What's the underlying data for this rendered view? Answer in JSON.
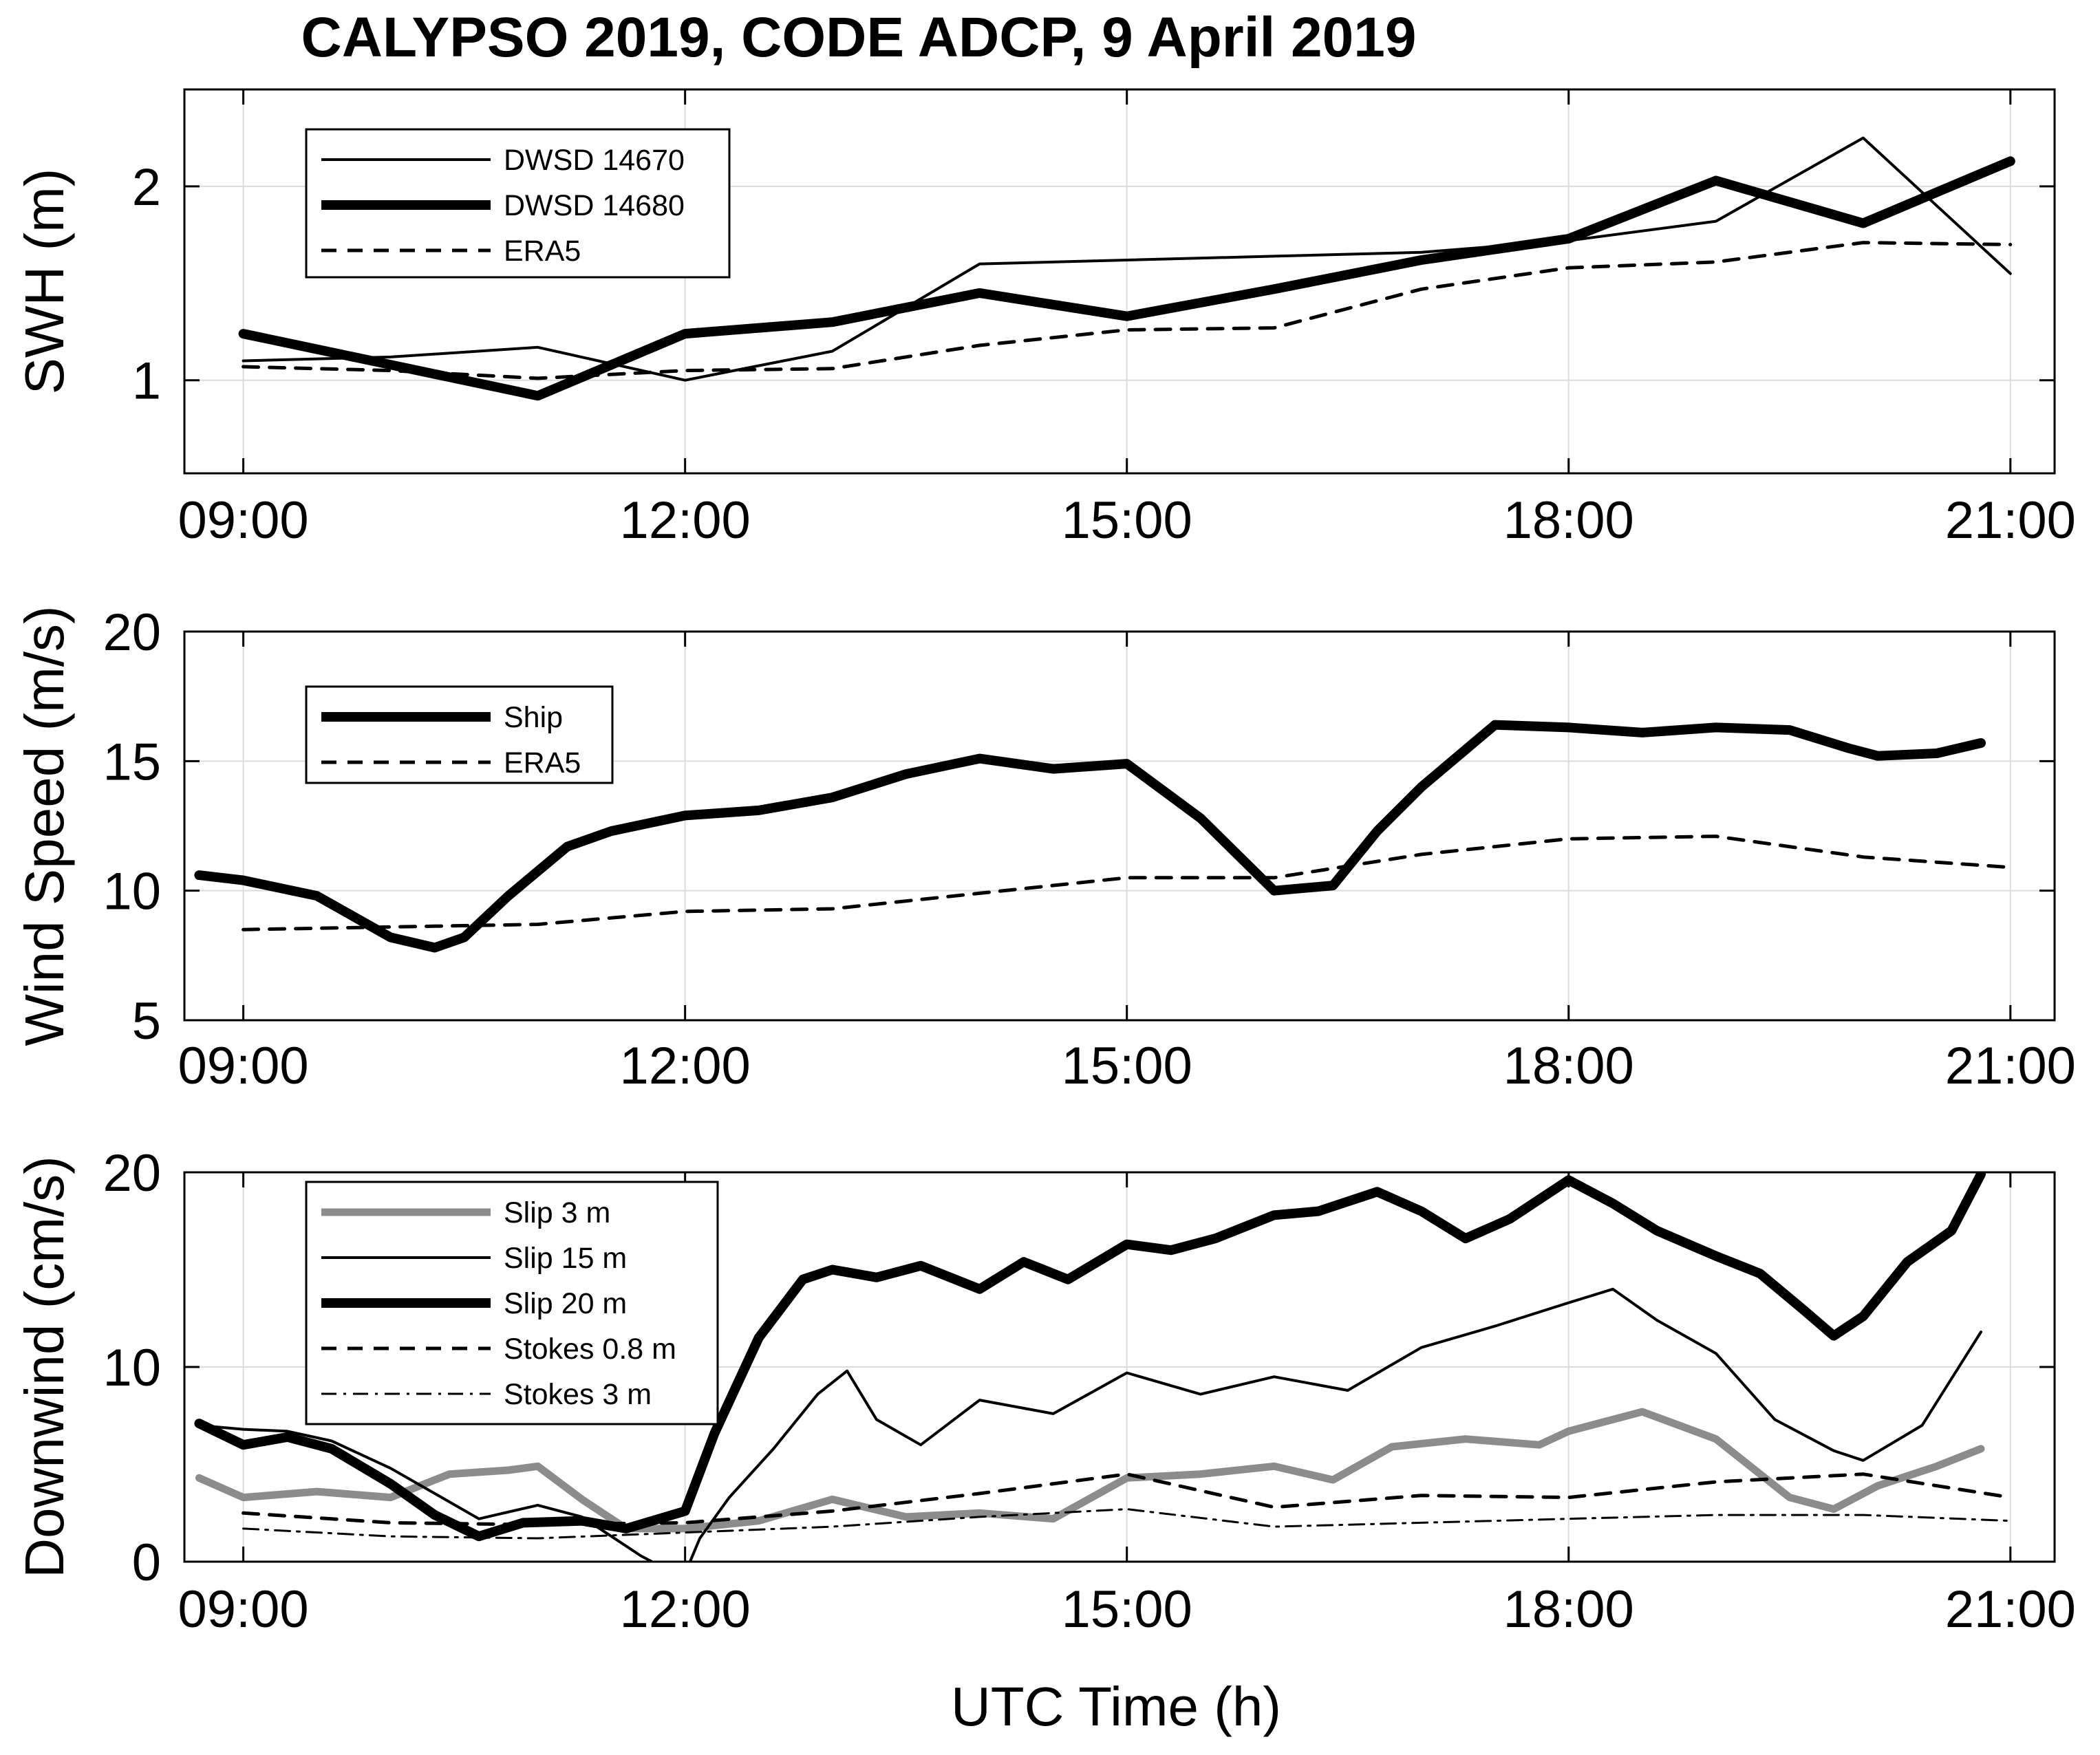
{
  "figure_title": "CALYPSO 2019, CODE ADCP, 9 April 2019",
  "x_axis_label": "UTC Time (h)",
  "chart_data": [
    {
      "type": "line",
      "ylabel": "SWH (m)",
      "xlabel": "",
      "xlim": [
        8.6,
        21.3
      ],
      "ylim": [
        0.52,
        2.5
      ],
      "xticks": [
        9,
        12,
        15,
        18,
        21
      ],
      "xtick_labels": [
        "09:00",
        "12:00",
        "15:00",
        "18:00",
        "21:00"
      ],
      "yticks": [
        1,
        2
      ],
      "ytick_labels": [
        "1",
        "2"
      ],
      "grid": true,
      "legend_position": "top-left",
      "series": [
        {
          "name": "DWSD 14670",
          "style": "thin",
          "x": [
            9,
            10,
            11,
            12,
            13,
            14,
            15,
            16,
            17,
            18,
            19,
            20,
            21
          ],
          "y": [
            1.1,
            1.12,
            1.17,
            1.0,
            1.15,
            1.6,
            1.62,
            1.64,
            1.66,
            1.72,
            1.82,
            2.25,
            1.55
          ]
        },
        {
          "name": "DWSD 14680",
          "style": "thick",
          "x": [
            9,
            10,
            11,
            12,
            13,
            14,
            15,
            16,
            17,
            18,
            19,
            20,
            21
          ],
          "y": [
            1.24,
            1.08,
            0.92,
            1.24,
            1.3,
            1.45,
            1.33,
            1.47,
            1.62,
            1.73,
            2.03,
            1.81,
            2.13
          ]
        },
        {
          "name": "ERA5",
          "style": "dashed",
          "x": [
            9,
            10,
            11,
            12,
            13,
            14,
            15,
            16,
            17,
            18,
            19,
            20,
            21
          ],
          "y": [
            1.07,
            1.05,
            1.01,
            1.05,
            1.06,
            1.18,
            1.26,
            1.27,
            1.47,
            1.58,
            1.61,
            1.71,
            1.7
          ]
        }
      ]
    },
    {
      "type": "line",
      "ylabel": "Wind Speed (m/s)",
      "xlabel": "",
      "xlim": [
        8.6,
        21.3
      ],
      "ylim": [
        5,
        20
      ],
      "xticks": [
        9,
        12,
        15,
        18,
        21
      ],
      "xtick_labels": [
        "09:00",
        "12:00",
        "15:00",
        "18:00",
        "21:00"
      ],
      "yticks": [
        5,
        10,
        15,
        20
      ],
      "ytick_labels": [
        "5",
        "10",
        "15",
        "20"
      ],
      "grid": true,
      "legend_position": "top-left",
      "series": [
        {
          "name": "Ship",
          "style": "thick",
          "x": [
            8.7,
            9.0,
            9.5,
            10.0,
            10.3,
            10.5,
            10.8,
            11.2,
            11.5,
            12.0,
            12.5,
            13.0,
            13.5,
            14.0,
            14.5,
            15.0,
            15.5,
            16.0,
            16.4,
            16.7,
            17.0,
            17.5,
            18.0,
            18.5,
            19.0,
            19.5,
            19.9,
            20.1,
            20.5,
            20.8
          ],
          "y": [
            10.6,
            10.4,
            9.8,
            8.2,
            7.8,
            8.2,
            9.8,
            11.7,
            12.3,
            12.9,
            13.1,
            13.6,
            14.5,
            15.1,
            14.7,
            14.9,
            12.8,
            10.0,
            10.2,
            12.3,
            14.0,
            16.4,
            16.3,
            16.1,
            16.3,
            16.2,
            15.5,
            15.2,
            15.3,
            15.7
          ]
        },
        {
          "name": "ERA5",
          "style": "dashed",
          "x": [
            9,
            10,
            11,
            12,
            13,
            14,
            15,
            16,
            17,
            18,
            19,
            20,
            21
          ],
          "y": [
            8.5,
            8.6,
            8.7,
            9.2,
            9.3,
            9.9,
            10.5,
            10.5,
            11.4,
            12.0,
            12.1,
            11.3,
            10.9
          ]
        }
      ]
    },
    {
      "type": "line",
      "ylabel": "Downwind (cm/s)",
      "xlabel": "UTC Time (h)",
      "xlim": [
        8.6,
        21.3
      ],
      "ylim": [
        0,
        20
      ],
      "xticks": [
        9,
        12,
        15,
        18,
        21
      ],
      "xtick_labels": [
        "09:00",
        "12:00",
        "15:00",
        "18:00",
        "21:00"
      ],
      "yticks": [
        0,
        10,
        20
      ],
      "ytick_labels": [
        "0",
        "10",
        "20"
      ],
      "grid": true,
      "legend_position": "top-left",
      "series": [
        {
          "name": "Slip 3 m",
          "style": "gray",
          "x": [
            8.7,
            9.0,
            9.5,
            10.0,
            10.4,
            10.8,
            11.0,
            11.3,
            11.6,
            12.0,
            12.5,
            13.0,
            13.5,
            14.0,
            14.5,
            15.0,
            15.5,
            16.0,
            16.4,
            16.8,
            17.3,
            17.8,
            18.0,
            18.5,
            19.0,
            19.5,
            19.8,
            20.1,
            20.5,
            20.8
          ],
          "y": [
            4.3,
            3.3,
            3.6,
            3.3,
            4.5,
            4.7,
            4.9,
            3.2,
            1.7,
            1.7,
            2.1,
            3.2,
            2.3,
            2.5,
            2.2,
            4.3,
            4.5,
            4.9,
            4.2,
            5.9,
            6.3,
            6.0,
            6.7,
            7.7,
            6.3,
            3.3,
            2.7,
            3.9,
            4.9,
            5.8
          ]
        },
        {
          "name": "Slip 15 m",
          "style": "thin",
          "x": [
            8.7,
            9.0,
            9.3,
            9.6,
            10.0,
            10.3,
            10.6,
            11.0,
            11.3,
            11.5,
            11.7,
            11.85,
            12.0,
            12.1,
            12.3,
            12.6,
            12.9,
            13.1,
            13.3,
            13.6,
            14.0,
            14.5,
            15.0,
            15.5,
            16.0,
            16.5,
            17.0,
            17.5,
            18.0,
            18.3,
            18.6,
            19.0,
            19.4,
            19.8,
            20.0,
            20.4,
            20.8
          ],
          "y": [
            7.0,
            6.8,
            6.7,
            6.2,
            4.8,
            3.5,
            2.2,
            2.9,
            2.3,
            1.3,
            0.3,
            -0.3,
            -0.6,
            1.2,
            3.3,
            5.8,
            8.6,
            9.8,
            7.3,
            6.0,
            8.3,
            7.6,
            9.7,
            8.6,
            9.5,
            8.8,
            11.0,
            12.1,
            13.3,
            14.0,
            12.4,
            10.7,
            7.3,
            5.7,
            5.2,
            7.0,
            11.8
          ]
        },
        {
          "name": "Slip 20 m",
          "style": "thick",
          "x": [
            8.7,
            9.0,
            9.3,
            9.6,
            10.0,
            10.3,
            10.6,
            10.9,
            11.3,
            11.6,
            12.0,
            12.2,
            12.5,
            12.8,
            13.0,
            13.3,
            13.6,
            14.0,
            14.3,
            14.6,
            15.0,
            15.3,
            15.6,
            16.0,
            16.3,
            16.7,
            17.0,
            17.3,
            17.6,
            18.0,
            18.3,
            18.6,
            19.0,
            19.3,
            19.6,
            19.8,
            20.0,
            20.3,
            20.6,
            20.8
          ],
          "y": [
            7.1,
            6.0,
            6.4,
            5.8,
            4.0,
            2.4,
            1.3,
            2.0,
            2.1,
            1.7,
            2.6,
            6.6,
            11.5,
            14.5,
            15.0,
            14.6,
            15.2,
            14.0,
            15.4,
            14.5,
            16.3,
            16.0,
            16.6,
            17.8,
            18.0,
            19.0,
            18.0,
            16.6,
            17.6,
            19.6,
            18.4,
            17.0,
            15.7,
            14.8,
            12.9,
            11.6,
            12.6,
            15.4,
            17.0,
            19.9
          ]
        },
        {
          "name": "Stokes 0.8 m",
          "style": "dashed",
          "x": [
            9,
            10,
            11,
            12,
            13,
            14,
            15,
            16,
            17,
            18,
            19,
            20,
            21
          ],
          "y": [
            2.5,
            2.0,
            1.9,
            2.0,
            2.6,
            3.5,
            4.5,
            2.8,
            3.4,
            3.3,
            4.1,
            4.5,
            3.3
          ]
        },
        {
          "name": "Stokes 3 m",
          "style": "dashdot",
          "x": [
            9,
            10,
            11,
            12,
            13,
            14,
            15,
            16,
            17,
            18,
            19,
            20,
            21
          ],
          "y": [
            1.7,
            1.3,
            1.2,
            1.5,
            1.8,
            2.3,
            2.7,
            1.8,
            2.0,
            2.2,
            2.4,
            2.4,
            2.1
          ]
        }
      ]
    }
  ],
  "legends": [
    [
      "DWSD 14670",
      "DWSD 14680",
      "ERA5"
    ],
    [
      "Ship",
      "ERA5"
    ],
    [
      "Slip 3 m",
      "Slip 15 m",
      "Slip 20 m",
      "Stokes 0.8 m",
      "Stokes 3 m"
    ]
  ],
  "colors": {
    "axis": "#000000",
    "grid": "#dcdcdc",
    "line": "#000000",
    "gray_series": "#8c8c8c"
  }
}
